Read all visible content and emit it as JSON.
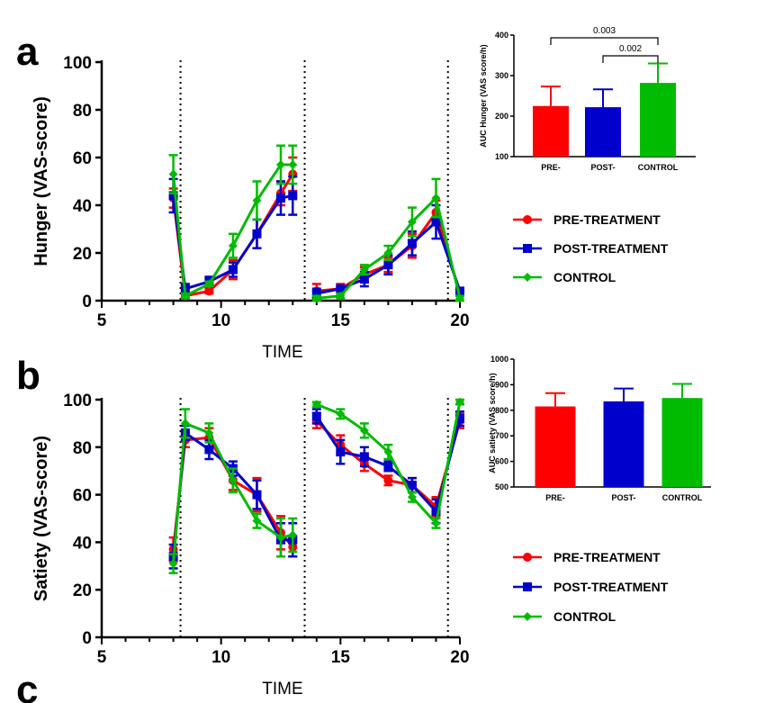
{
  "panel_letters": [
    "a",
    "b",
    "c"
  ],
  "chart_data": [
    {
      "id": "a-line",
      "type": "line",
      "ylabel": "Hunger (VAS-score)",
      "xlabel": "TIME",
      "xlim": [
        5,
        20
      ],
      "ylim": [
        0,
        100
      ],
      "xticks": [
        5,
        10,
        15,
        20
      ],
      "yticks": [
        0,
        20,
        40,
        60,
        80,
        100
      ],
      "meal_lines": [
        8.3,
        13.5,
        19.5
      ],
      "legend": "right",
      "series": [
        {
          "name": "PRE-TREATMENT",
          "color": "#ff0000",
          "marker": "circle",
          "segments": [
            [
              [
                8,
                43,
                4
              ],
              [
                8.5,
                2,
                1
              ],
              [
                9.5,
                4,
                1
              ],
              [
                10.5,
                13,
                4
              ],
              [
                11.5,
                28,
                6
              ],
              [
                12.5,
                45,
                5
              ],
              [
                13,
                53,
                7
              ]
            ],
            [
              [
                14,
                4,
                3
              ],
              [
                15,
                5,
                2
              ],
              [
                16,
                11,
                3
              ],
              [
                17,
                15,
                3
              ],
              [
                18,
                23,
                5
              ],
              [
                19,
                37,
                5
              ],
              [
                20,
                3,
                1
              ]
            ]
          ]
        },
        {
          "name": "POST-TREATMENT",
          "color": "#0000cc",
          "marker": "square",
          "segments": [
            [
              [
                8,
                44,
                7
              ],
              [
                8.5,
                5,
                2
              ],
              [
                9.5,
                8,
                2
              ],
              [
                10.5,
                13,
                3
              ],
              [
                11.5,
                28,
                6
              ],
              [
                12.5,
                43,
                7
              ],
              [
                13,
                44,
                8
              ]
            ],
            [
              [
                14,
                3,
                2
              ],
              [
                15,
                5,
                1
              ],
              [
                16,
                9,
                3
              ],
              [
                17,
                15,
                4
              ],
              [
                18,
                24,
                5
              ],
              [
                19,
                33,
                7
              ],
              [
                20,
                4,
                1
              ]
            ]
          ]
        },
        {
          "name": "CONTROL",
          "color": "#00bb00",
          "marker": "diamond",
          "segments": [
            [
              [
                8,
                53,
                8
              ],
              [
                8.5,
                2,
                1
              ],
              [
                9.5,
                7,
                1
              ],
              [
                10.5,
                23,
                5
              ],
              [
                11.5,
                42,
                8
              ],
              [
                12.5,
                57,
                8
              ],
              [
                13,
                57,
                8
              ]
            ],
            [
              [
                14,
                1,
                1
              ],
              [
                15,
                2,
                1
              ],
              [
                16,
                13,
                2
              ],
              [
                17,
                20,
                3
              ],
              [
                18,
                33,
                6
              ],
              [
                19,
                43,
                8
              ],
              [
                20,
                1,
                1
              ]
            ]
          ]
        }
      ]
    },
    {
      "id": "a-bar",
      "type": "bar",
      "ylabel": "AUC Hunger (VAS score/h)",
      "categories": [
        "PRE-",
        "POST-",
        "CONTROL"
      ],
      "values": [
        225,
        222,
        282
      ],
      "errors": [
        48,
        44,
        48
      ],
      "colors": [
        "#ff0000",
        "#0000cc",
        "#00bb00"
      ],
      "ylim": [
        100,
        400
      ],
      "yticks": [
        100,
        200,
        300,
        400
      ],
      "significance": [
        {
          "from": "PRE-",
          "to": "CONTROL",
          "label": "0.003"
        },
        {
          "from": "POST-",
          "to": "CONTROL",
          "label": "0.002"
        }
      ]
    },
    {
      "id": "b-line",
      "type": "line",
      "ylabel": "Satiety (VAS-score)",
      "xlabel": "TIME",
      "xlim": [
        5,
        20
      ],
      "ylim": [
        0,
        100
      ],
      "xticks": [
        5,
        10,
        15,
        20
      ],
      "yticks": [
        0,
        20,
        40,
        60,
        80,
        100
      ],
      "meal_lines": [
        8.3,
        13.5,
        19.5
      ],
      "legend": "right",
      "series": [
        {
          "name": "PRE-TREATMENT",
          "color": "#ff0000",
          "marker": "circle",
          "segments": [
            [
              [
                8,
                37,
                5
              ],
              [
                8.5,
                83,
                3
              ],
              [
                9.5,
                84,
                4
              ],
              [
                10.5,
                66,
                4
              ],
              [
                11.5,
                60,
                7
              ],
              [
                12.5,
                44,
                7
              ],
              [
                13,
                38,
                4
              ]
            ],
            [
              [
                14,
                91,
                3
              ],
              [
                15,
                81,
                4
              ],
              [
                16,
                73,
                3
              ],
              [
                17,
                66,
                2
              ],
              [
                18,
                64,
                3
              ],
              [
                19,
                55,
                4
              ],
              [
                20,
                91,
                3
              ]
            ]
          ]
        },
        {
          "name": "POST-TREATMENT",
          "color": "#0000cc",
          "marker": "square",
          "segments": [
            [
              [
                8,
                34,
                5
              ],
              [
                8.5,
                86,
                3
              ],
              [
                9.5,
                79,
                4
              ],
              [
                10.5,
                71,
                3
              ],
              [
                11.5,
                60,
                6
              ],
              [
                12.5,
                41,
                7
              ],
              [
                13,
                41,
                7
              ]
            ],
            [
              [
                14,
                93,
                3
              ],
              [
                15,
                78,
                5
              ],
              [
                16,
                76,
                4
              ],
              [
                17,
                72,
                2
              ],
              [
                18,
                64,
                3
              ],
              [
                19,
                53,
                5
              ],
              [
                20,
                92,
                3
              ]
            ]
          ]
        },
        {
          "name": "CONTROL",
          "color": "#00bb00",
          "marker": "diamond",
          "segments": [
            [
              [
                8,
                31,
                4
              ],
              [
                8.5,
                90,
                6
              ],
              [
                9.5,
                86,
                4
              ],
              [
                10.5,
                66,
                5
              ],
              [
                11.5,
                49,
                3
              ],
              [
                12.5,
                42,
                8
              ],
              [
                13,
                43,
                7
              ]
            ],
            [
              [
                14,
                98,
                1
              ],
              [
                15,
                94,
                2
              ],
              [
                16,
                87,
                3
              ],
              [
                17,
                78,
                3
              ],
              [
                18,
                59,
                2
              ],
              [
                19,
                48,
                2
              ],
              [
                20,
                99,
                1
              ]
            ]
          ]
        }
      ]
    },
    {
      "id": "b-bar",
      "type": "bar",
      "ylabel": "AUC satiety (VAS score/h)",
      "categories": [
        "PRE-",
        "POST-",
        "CONTROL"
      ],
      "values": [
        815,
        835,
        848
      ],
      "errors": [
        52,
        50,
        55
      ],
      "colors": [
        "#ff0000",
        "#0000cc",
        "#00bb00"
      ],
      "ylim": [
        500,
        1000
      ],
      "yticks": [
        500,
        600,
        700,
        800,
        900,
        1000
      ]
    }
  ]
}
